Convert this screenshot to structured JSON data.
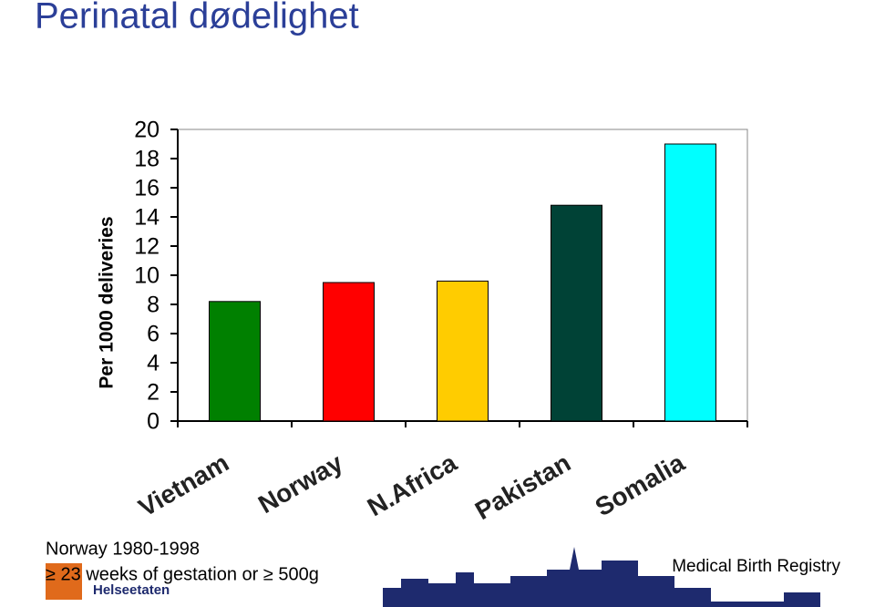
{
  "chart_data": {
    "type": "bar",
    "title": "Perinatal dødelighet",
    "y_label": "Per 1000 deliveries",
    "categories": [
      "Vietnam",
      "Norway",
      "N.Africa",
      "Pakistan",
      "Somalia"
    ],
    "values": [
      8.2,
      9.5,
      9.6,
      14.8,
      19
    ],
    "colors": [
      "#008000",
      "#ff0000",
      "#ffcc00",
      "#004236",
      "#00ffff"
    ],
    "ylim": [
      0,
      20
    ],
    "yticks": [
      0,
      2,
      4,
      6,
      8,
      10,
      12,
      14,
      16,
      18,
      20
    ],
    "grid": false
  },
  "footnote": [
    "Norway 1980-1998",
    "≥ 23 weeks of gestation or ≥ 500g"
  ],
  "source": "Medical Birth Registry",
  "logo": "Helseetaten"
}
